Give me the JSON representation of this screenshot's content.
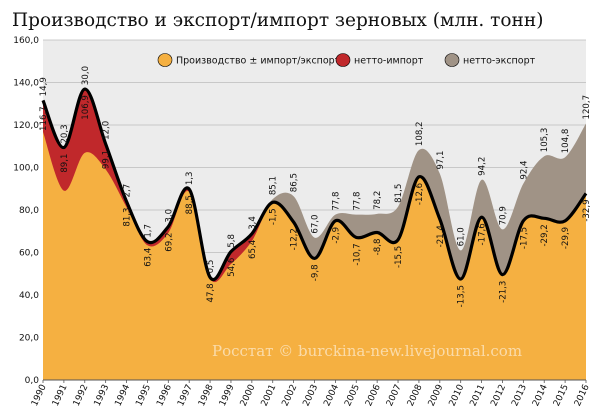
{
  "chart_data": {
    "type": "area",
    "title": "Производство и экспорт/импорт зерновых (млн. тонн)",
    "x": [
      1990,
      1991,
      1992,
      1993,
      1994,
      1995,
      1996,
      1997,
      1998,
      1999,
      2000,
      2001,
      2002,
      2003,
      2004,
      2005,
      2006,
      2007,
      2008,
      2009,
      2010,
      2011,
      2012,
      2013,
      2014,
      2015,
      2016
    ],
    "ylim": [
      0,
      160
    ],
    "yticks": [
      "0,0",
      "20,0",
      "40,0",
      "60,0",
      "80,0",
      "100,0",
      "120,0",
      "140,0",
      "160,0"
    ],
    "grid": true,
    "legend_position": "top-right",
    "series": [
      {
        "name": "Производство ± импорт/экспорт",
        "color": "#f5b041",
        "values": [
          116.7,
          89.1,
          106.9,
          99.1,
          81.3,
          63.4,
          69.2,
          88.5,
          47.8,
          54.6,
          65.4,
          83.6,
          74.3,
          57.2,
          74.9,
          67.1,
          69.4,
          66.0,
          95.6,
          75.7,
          47.5,
          76.6,
          49.6,
          74.9,
          76.1,
          74.9,
          87.8
        ]
      },
      {
        "name": "нетто-импорт",
        "color": "#c0282b",
        "values": [
          14.9,
          20.3,
          30.0,
          12.0,
          2.7,
          1.7,
          3.0,
          1.3,
          0.5,
          5.8,
          3.4,
          null,
          null,
          null,
          null,
          null,
          null,
          null,
          null,
          null,
          null,
          null,
          null,
          null,
          null,
          null,
          null
        ]
      },
      {
        "name": "нетто-экспорт",
        "color": "#a09386",
        "values": [
          null,
          null,
          null,
          null,
          null,
          null,
          null,
          null,
          null,
          null,
          null,
          1.5,
          12.2,
          9.8,
          2.9,
          10.7,
          8.8,
          15.5,
          12.6,
          21.4,
          13.5,
          17.6,
          21.3,
          17.5,
          29.2,
          29.9,
          32.9
        ]
      }
    ],
    "annotations_top": [
      "14,9",
      "20,3",
      "30,0",
      "12,0",
      "2,7",
      "1,7",
      "3,0",
      "1,3",
      "0,5",
      "5,8",
      "3,4",
      "85,1",
      "86,5",
      "67,0",
      "77,8",
      "77,8",
      "78,2",
      "81,5",
      "108,2",
      "97,1",
      "61,0",
      "94,2",
      "70,9",
      "92,4",
      "105,3",
      "104,8",
      "120,7"
    ],
    "annotations_bottom": [
      "116,7",
      "89,1",
      "106,9",
      "99,1",
      "81,3",
      "63,4",
      "69,2",
      "88,5",
      "47,8",
      "54,6",
      "65,4",
      "-1,5",
      "-12,2",
      "-9,8",
      "-2,9",
      "-10,7",
      "-8,8",
      "-15,5",
      "-12,6",
      "-21,4",
      "-13,5",
      "-17,6",
      "-21,3",
      "-17,5",
      "-29,2",
      "-29,9",
      "-32,9"
    ],
    "watermark": "Росстат © burckina-new.livejournal.com"
  }
}
